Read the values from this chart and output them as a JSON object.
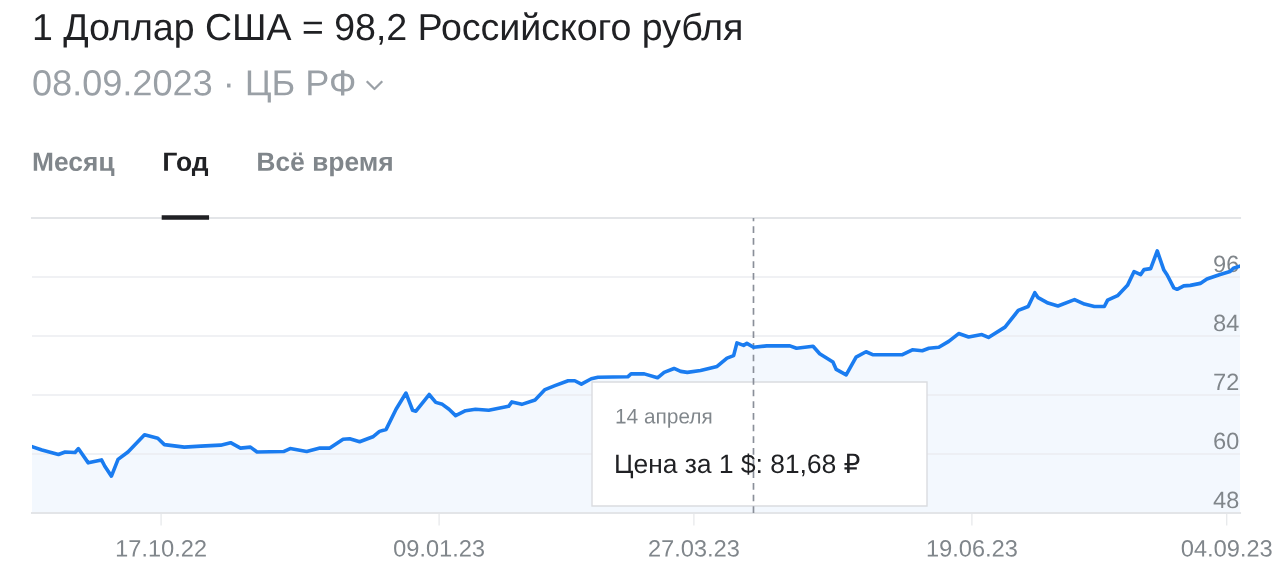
{
  "chart_data": {
    "type": "area",
    "title": "1 Доллар США = 98,2 Российского рубля",
    "subtitle": "08.09.2023 · ЦБ РФ",
    "annotations": [
      "Месяц",
      "Год",
      "Всё время",
      "14 апреля",
      "Цена за 1 $: 81,68 ₽"
    ],
    "x": [
      "2022-09-08",
      "2022-09-11",
      "2022-09-16",
      "2022-09-18",
      "2022-09-21",
      "2022-09-22",
      "2022-09-25",
      "2022-09-29",
      "2022-09-30",
      "2022-10-02",
      "2022-10-04",
      "2022-10-07",
      "2022-10-12",
      "2022-10-16",
      "2022-10-18",
      "2022-10-24",
      "2022-10-29",
      "2022-11-04",
      "2022-11-07",
      "2022-11-10",
      "2022-11-13",
      "2022-11-15",
      "2022-11-23",
      "2022-11-25",
      "2022-11-30",
      "2022-12-04",
      "2022-12-07",
      "2022-12-11",
      "2022-12-13",
      "2022-12-16",
      "2022-12-20",
      "2022-12-22",
      "2022-12-24",
      "2022-12-27",
      "2022-12-30",
      "2023-01-01",
      "2023-01-02",
      "2023-01-06",
      "2023-01-08",
      "2023-01-10",
      "2023-01-12",
      "2023-01-14",
      "2023-01-17",
      "2023-01-20",
      "2023-01-24",
      "2023-01-30",
      "2023-01-31",
      "2023-02-03",
      "2023-02-07",
      "2023-02-10",
      "2023-02-13",
      "2023-02-17",
      "2023-02-19",
      "2023-02-21",
      "2023-02-24",
      "2023-02-26",
      "2023-03-07",
      "2023-03-08",
      "2023-03-12",
      "2023-03-16",
      "2023-03-18",
      "2023-03-21",
      "2023-03-23",
      "2023-03-25",
      "2023-03-29",
      "2023-04-03",
      "2023-04-06",
      "2023-04-08",
      "2023-04-09",
      "2023-04-11",
      "2023-04-12",
      "2023-04-14",
      "2023-04-18",
      "2023-04-25",
      "2023-04-27",
      "2023-05-02",
      "2023-05-04",
      "2023-05-08",
      "2023-05-09",
      "2023-05-12",
      "2023-05-15",
      "2023-05-18",
      "2023-05-20",
      "2023-05-29",
      "2023-06-01",
      "2023-06-04",
      "2023-06-06",
      "2023-06-09",
      "2023-06-12",
      "2023-06-15",
      "2023-06-18",
      "2023-06-22",
      "2023-06-24",
      "2023-06-29",
      "2023-07-03",
      "2023-07-06",
      "2023-07-08",
      "2023-07-09",
      "2023-07-12",
      "2023-07-15",
      "2023-07-20",
      "2023-07-23",
      "2023-07-26",
      "2023-07-29",
      "2023-07-30",
      "2023-08-02",
      "2023-08-05",
      "2023-08-07",
      "2023-08-09",
      "2023-08-10",
      "2023-08-12",
      "2023-08-14",
      "2023-08-16",
      "2023-08-17",
      "2023-08-19",
      "2023-08-20",
      "2023-08-22",
      "2023-08-24",
      "2023-08-27",
      "2023-08-29",
      "2023-09-02",
      "2023-09-05",
      "2023-09-06",
      "2023-09-08"
    ],
    "series": [
      {
        "color": "#1a7cf0",
        "values": [
          61.5,
          60.8,
          59.9,
          60.4,
          60.3,
          61.1,
          58.2,
          58.8,
          57.5,
          55.5,
          58.9,
          60.4,
          63.9,
          63.2,
          61.9,
          61.4,
          61.6,
          61.8,
          62.3,
          61.2,
          61.4,
          60.4,
          60.5,
          61.1,
          60.5,
          61.2,
          61.2,
          63.0,
          63.1,
          62.5,
          63.5,
          64.6,
          65.0,
          69.1,
          72.4,
          68.9,
          68.7,
          72.1,
          70.5,
          70.1,
          69.1,
          67.8,
          68.8,
          69.1,
          68.9,
          69.7,
          70.6,
          70.1,
          71.0,
          73.1,
          73.9,
          74.9,
          74.9,
          74.2,
          75.3,
          75.6,
          75.7,
          76.3,
          76.3,
          75.5,
          76.6,
          77.4,
          76.8,
          76.6,
          77.0,
          77.8,
          79.5,
          80.0,
          82.6,
          82.1,
          82.5,
          81.7,
          82.0,
          82.0,
          81.5,
          81.9,
          80.4,
          78.7,
          77.2,
          76.1,
          79.7,
          80.8,
          80.2,
          80.2,
          81.2,
          81.0,
          81.5,
          81.7,
          82.9,
          84.5,
          83.8,
          84.3,
          83.7,
          85.8,
          89.2,
          90.0,
          92.8,
          91.8,
          90.7,
          90.1,
          91.4,
          90.5,
          90.0,
          90.0,
          91.3,
          92.2,
          94.3,
          97.1,
          96.5,
          97.5,
          97.7,
          101.3,
          97.4,
          96.4,
          93.8,
          93.5,
          94.2,
          94.3,
          94.7,
          95.6,
          96.5,
          97.1,
          97.8,
          98.2
        ]
      }
    ],
    "xlim": [
      "2022-09-08",
      "2023-09-08"
    ],
    "xticks": [
      {
        "value": "2022-10-17",
        "label": "17.10.22"
      },
      {
        "value": "2023-01-09",
        "label": "09.01.23"
      },
      {
        "value": "2023-03-27",
        "label": "27.03.23"
      },
      {
        "value": "2023-06-19",
        "label": "19.06.23"
      },
      {
        "value": "2023-09-04",
        "label": "04.09.23"
      }
    ],
    "ylim": [
      48,
      108
    ],
    "yticks": [
      48,
      60,
      72,
      84,
      96
    ],
    "grid": "y",
    "ref_lines": [
      {
        "axis": "x",
        "value": "2023-04-14",
        "label": null,
        "color": "#8a8f99",
        "line_style": "dashed"
      }
    ]
  }
}
